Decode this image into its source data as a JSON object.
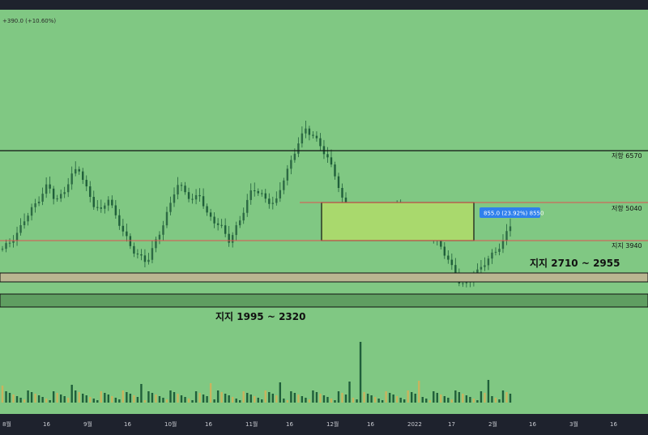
{
  "header": {
    "change_label": "+390.0 (+10.60%)"
  },
  "price_labels": {
    "resistance_6570": "저항 6570",
    "resistance_5040": "저항 5040",
    "support_3940": "지지 3940",
    "support_2710_2955": "지지 2710 ~ 2955",
    "support_1995_2320": "지지 1995 ~ 2320"
  },
  "measure": {
    "label": "855.0 (23.92%) 8550"
  },
  "colors": {
    "background": "#80c883",
    "resistance_line": "#e05050",
    "level_line": "#111111",
    "zone_upper": "#b9b691",
    "zone_lower": "#5f9e61",
    "box_fill": "#a9d96d",
    "measure_badge": "#2f80ed",
    "candle": "#1f5f3a",
    "volume": "#1f5f3a",
    "volume_alt": "#c9b35e"
  },
  "chart_data": {
    "type": "candlestick",
    "xaxis_ticks": [
      "8월",
      "16",
      "9월",
      "16",
      "10월",
      "16",
      "11월",
      "16",
      "12월",
      "16",
      "2022",
      "17",
      "2월",
      "16",
      "3월",
      "16"
    ],
    "horizontal_levels": [
      6570,
      5040,
      3940
    ],
    "support_zones": [
      [
        2710,
        2955
      ],
      [
        1995,
        2320
      ]
    ],
    "price_path": [
      3700,
      3900,
      4150,
      4600,
      4900,
      5200,
      5600,
      5100,
      5300,
      5800,
      6100,
      5500,
      5000,
      4800,
      5200,
      4600,
      4200,
      3700,
      3500,
      3300,
      3800,
      4300,
      4900,
      5600,
      5400,
      5100,
      5300,
      4700,
      4500,
      4300,
      3900,
      4400,
      4900,
      5500,
      5300,
      5100,
      5000,
      5700,
      6200,
      6800,
      7200,
      7000,
      6700,
      6300,
      5800,
      5000,
      4500,
      4400,
      4700,
      4400,
      4500,
      4700,
      4900,
      4800,
      4600,
      4400,
      4200,
      4000,
      3700,
      3300,
      2800,
      2600,
      2900,
      3100,
      3400,
      3600,
      3900,
      4400
    ],
    "last_close": 4400,
    "change": 390.0,
    "change_pct": 10.6,
    "measure": {
      "delta": 855.0,
      "delta_pct": 23.92
    }
  }
}
